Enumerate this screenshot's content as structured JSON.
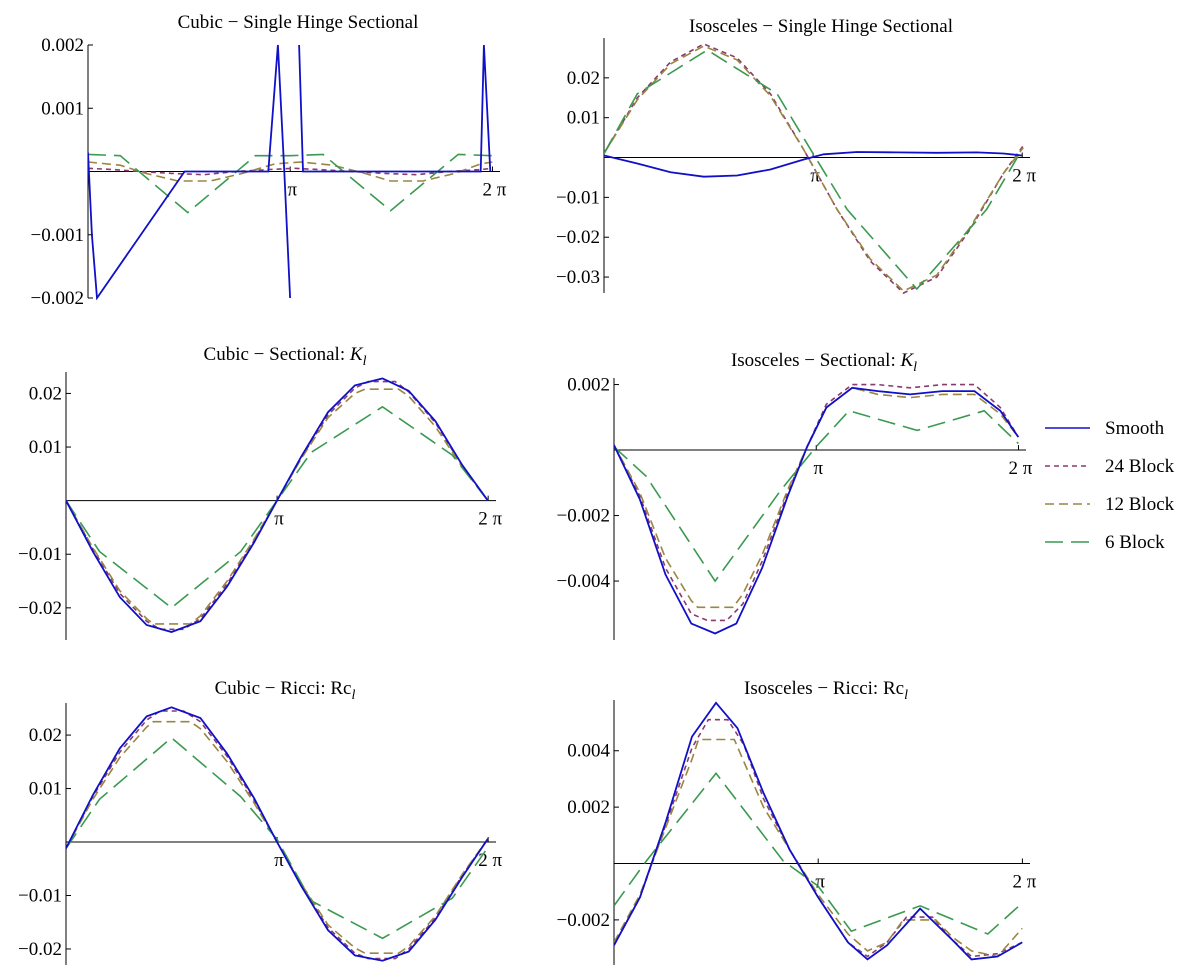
{
  "legend": {
    "placement": "right-middle",
    "entries": [
      {
        "name": "Smooth",
        "color": "#1010c8",
        "dash": "solid"
      },
      {
        "name": "24 Block",
        "color": "#8a3a6e",
        "dash": "short-dash"
      },
      {
        "name": "12 Block",
        "color": "#9a8640",
        "dash": "medium-dash"
      },
      {
        "name": "6 Block",
        "color": "#3a9a50",
        "dash": "long-dash"
      }
    ]
  },
  "x_ticks": [
    {
      "value": 3.14159,
      "label": "π"
    },
    {
      "value": 6.28319,
      "label": "2 π"
    }
  ],
  "chart_data": [
    {
      "type": "line",
      "title": "Cubic − Single Hinge Sectional",
      "xlim": [
        0,
        6.4
      ],
      "ylim": [
        -0.002,
        0.002
      ],
      "yticks": [
        {
          "value": 0.002,
          "label": "0.002"
        },
        {
          "value": 0.001,
          "label": "0.001"
        },
        {
          "value": -0.001,
          "label": "−0.001"
        },
        {
          "value": -0.002,
          "label": "−0.002"
        }
      ],
      "series": [
        {
          "name": "Smooth",
          "x": [
            0,
            0.06,
            0.14,
            1.5,
            2.8,
            2.95,
            3.05,
            3.14,
            3.2,
            3.28,
            3.34,
            4.7,
            6.1,
            6.15,
            6.2,
            6.25
          ],
          "y": [
            0.0003,
            -0.001,
            -0.002,
            0,
            0,
            0.002,
            0,
            -0.002,
            null,
            0.002,
            0,
            0,
            0,
            0.002,
            0.001,
            0
          ]
        },
        {
          "name": "24 Block",
          "x": [
            0,
            0.4,
            0.8,
            1.3,
            1.8,
            2.3,
            2.8,
            3.2,
            3.6,
            4.1,
            4.6,
            5.1,
            5.6,
            6.1,
            6.28
          ],
          "y": [
            5e-05,
            3e-05,
            0,
            -3e-05,
            -5e-05,
            0,
            3e-05,
            5e-05,
            3e-05,
            0,
            -3e-05,
            -5e-05,
            0,
            3e-05,
            5e-05
          ]
        },
        {
          "name": "12 Block",
          "x": [
            0,
            0.5,
            0.9,
            1.4,
            1.9,
            2.4,
            2.9,
            3.3,
            3.8,
            4.3,
            4.7,
            5.2,
            5.7,
            6.1,
            6.28
          ],
          "y": [
            0.00015,
            0.0001,
            -3e-05,
            -0.00015,
            -0.00015,
            -3e-05,
            0.00012,
            0.00015,
            0.0001,
            -3e-05,
            -0.00015,
            -0.00015,
            -3e-05,
            0.00012,
            0.00015
          ]
        },
        {
          "name": "6 Block",
          "x": [
            0,
            0.5,
            1.55,
            2.6,
            3.14,
            3.65,
            4.7,
            5.75,
            6.28
          ],
          "y": [
            0.00027,
            0.00025,
            -0.00065,
            0.00025,
            0.00025,
            0.00027,
            -0.00062,
            0.00027,
            0.00025
          ]
        }
      ]
    },
    {
      "type": "line",
      "title": "Isosceles − Single Hinge Sectional",
      "xlim": [
        0,
        6.4
      ],
      "ylim": [
        -0.034,
        0.03
      ],
      "yticks": [
        {
          "value": 0.02,
          "label": "0.02"
        },
        {
          "value": 0.01,
          "label": "0.01"
        },
        {
          "value": -0.01,
          "label": "−0.01"
        },
        {
          "value": -0.02,
          "label": "−0.02"
        },
        {
          "value": -0.03,
          "label": "−0.03"
        }
      ],
      "series": [
        {
          "name": "Smooth",
          "x": [
            0,
            0.5,
            1.0,
            1.5,
            2.0,
            2.5,
            3.0,
            3.3,
            3.8,
            4.4,
            5.0,
            5.6,
            6.0,
            6.28
          ],
          "y": [
            0.0005,
            -0.0015,
            -0.0037,
            -0.0048,
            -0.0045,
            -0.003,
            -0.0005,
            0.0008,
            0.0014,
            0.0013,
            0.0012,
            0.0013,
            0.001,
            0.0005
          ]
        },
        {
          "name": "24 Block",
          "x": [
            0,
            0.5,
            1.0,
            1.5,
            2.0,
            2.5,
            3.0,
            3.5,
            4.0,
            4.5,
            5.0,
            5.5,
            6.0,
            6.3
          ],
          "y": [
            0.001,
            0.015,
            0.024,
            0.0285,
            0.025,
            0.016,
            0.002,
            -0.013,
            -0.026,
            -0.034,
            -0.03,
            -0.018,
            -0.004,
            0.003
          ]
        },
        {
          "name": "12 Block",
          "x": [
            0,
            0.5,
            1.0,
            1.5,
            2.0,
            2.5,
            3.0,
            3.5,
            4.0,
            4.5,
            5.0,
            5.5,
            6.0,
            6.3
          ],
          "y": [
            0.001,
            0.0145,
            0.0235,
            0.028,
            0.0245,
            0.0155,
            0.002,
            -0.013,
            -0.0255,
            -0.0335,
            -0.0295,
            -0.0175,
            -0.004,
            0.0025
          ]
        },
        {
          "name": "6 Block",
          "x": [
            0,
            0.5,
            1.55,
            2.6,
            3.14,
            3.65,
            4.7,
            5.75,
            6.28
          ],
          "y": [
            0.001,
            0.016,
            0.027,
            0.016,
            0.001,
            -0.013,
            -0.033,
            -0.013,
            0.002
          ]
        }
      ]
    },
    {
      "type": "line",
      "title": "Cubic − Sectional: ",
      "title_symbol": "K",
      "title_subscript": "l",
      "xlim": [
        0,
        6.4
      ],
      "ylim": [
        -0.026,
        0.024
      ],
      "yticks": [
        {
          "value": 0.02,
          "label": "0.02"
        },
        {
          "value": 0.01,
          "label": "0.01"
        },
        {
          "value": -0.01,
          "label": "−0.01"
        },
        {
          "value": -0.02,
          "label": "−0.02"
        }
      ],
      "series": [
        {
          "name": "Smooth",
          "x": [
            0,
            0.4,
            0.8,
            1.2,
            1.57,
            2.0,
            2.4,
            2.8,
            3.14,
            3.5,
            3.9,
            4.3,
            4.71,
            5.1,
            5.5,
            5.9,
            6.28
          ],
          "y": [
            0,
            -0.0095,
            -0.018,
            -0.0232,
            -0.0245,
            -0.0225,
            -0.016,
            -0.0078,
            0,
            0.0082,
            0.0165,
            0.0215,
            0.0228,
            0.0205,
            0.0148,
            0.0066,
            0
          ]
        },
        {
          "name": "24 Block",
          "x": [
            0,
            0.4,
            0.8,
            1.2,
            1.4,
            1.75,
            2.0,
            2.4,
            2.8,
            3.14,
            3.5,
            3.9,
            4.3,
            4.5,
            4.9,
            5.1,
            5.5,
            5.9,
            6.28
          ],
          "y": [
            0,
            -0.009,
            -0.0173,
            -0.0225,
            -0.024,
            -0.024,
            -0.022,
            -0.0155,
            -0.0075,
            0,
            0.008,
            0.016,
            0.021,
            0.0222,
            0.0222,
            0.0203,
            0.0145,
            0.0064,
            0
          ]
        },
        {
          "name": "12 Block",
          "x": [
            0,
            0.4,
            0.8,
            1.2,
            1.3,
            1.85,
            2.0,
            2.4,
            2.8,
            3.14,
            3.5,
            3.9,
            4.3,
            4.45,
            4.95,
            5.1,
            5.5,
            5.9,
            6.28
          ],
          "y": [
            0,
            -0.0088,
            -0.0168,
            -0.022,
            -0.023,
            -0.023,
            -0.0215,
            -0.015,
            -0.0072,
            0,
            0.0078,
            0.0155,
            0.02,
            0.0208,
            0.0208,
            0.0195,
            0.0138,
            0.0062,
            0
          ]
        },
        {
          "name": "6 Block",
          "x": [
            0,
            0.5,
            1.57,
            2.6,
            3.14,
            3.65,
            4.71,
            5.75,
            6.28
          ],
          "y": [
            0,
            -0.0095,
            -0.02,
            -0.0095,
            0,
            0.009,
            0.0175,
            0.0085,
            0
          ]
        }
      ]
    },
    {
      "type": "line",
      "title": "Isosceles − Sectional: ",
      "title_symbol": "K",
      "title_subscript": "l",
      "xlim": [
        0,
        6.4
      ],
      "ylim": [
        -0.0058,
        0.0022
      ],
      "yticks": [
        {
          "value": 0.002,
          "label": "0.002"
        },
        {
          "value": -0.002,
          "label": "−0.002"
        },
        {
          "value": -0.004,
          "label": "−0.004"
        }
      ],
      "series": [
        {
          "name": "Smooth",
          "x": [
            0,
            0.4,
            0.8,
            1.2,
            1.57,
            1.9,
            2.3,
            2.7,
            3.0,
            3.3,
            3.7,
            4.1,
            4.6,
            5.1,
            5.6,
            6.0,
            6.28
          ],
          "y": [
            0.00015,
            -0.0015,
            -0.0038,
            -0.0053,
            -0.0056,
            -0.0053,
            -0.0036,
            -0.0014,
            0.0001,
            0.0013,
            0.0019,
            0.0018,
            0.0017,
            0.0018,
            0.0018,
            0.0012,
            0.0004
          ]
        },
        {
          "name": "24 Block",
          "x": [
            0,
            0.4,
            0.8,
            1.2,
            1.45,
            1.75,
            2.0,
            2.3,
            2.7,
            3.0,
            3.3,
            3.7,
            4.1,
            4.6,
            5.1,
            5.6,
            6.0,
            6.28
          ],
          "y": [
            0.00015,
            -0.0014,
            -0.0036,
            -0.005,
            -0.0052,
            -0.0052,
            -0.0047,
            -0.0034,
            -0.0013,
            0.0001,
            0.0014,
            0.002,
            0.002,
            0.0019,
            0.002,
            0.002,
            0.0013,
            0.0004
          ]
        },
        {
          "name": "12 Block",
          "x": [
            0,
            0.4,
            0.8,
            1.2,
            1.3,
            1.85,
            2.0,
            2.3,
            2.7,
            3.0,
            3.3,
            3.7,
            4.1,
            4.6,
            5.1,
            5.6,
            6.0,
            6.28
          ],
          "y": [
            0.00015,
            -0.0013,
            -0.0033,
            -0.0046,
            -0.0048,
            -0.0048,
            -0.0044,
            -0.0032,
            -0.0012,
            0.0001,
            0.0013,
            0.0019,
            0.0017,
            0.0016,
            0.0017,
            0.0017,
            0.0011,
            0.0004
          ]
        },
        {
          "name": "6 Block",
          "x": [
            0,
            0.5,
            1.57,
            2.6,
            3.14,
            3.65,
            4.71,
            5.75,
            6.28
          ],
          "y": [
            0.0001,
            -0.0008,
            -0.004,
            -0.0012,
            0.0001,
            0.0012,
            0.0006,
            0.0012,
            0.0002
          ]
        }
      ]
    },
    {
      "type": "line",
      "title": "Cubic − Ricci: Rc",
      "title_subscript": "l",
      "xlim": [
        0,
        6.4
      ],
      "ylim": [
        -0.023,
        0.026
      ],
      "yticks": [
        {
          "value": 0.02,
          "label": "0.02"
        },
        {
          "value": 0.01,
          "label": "0.01"
        },
        {
          "value": -0.01,
          "label": "−0.01"
        },
        {
          "value": -0.02,
          "label": "−0.02"
        }
      ],
      "series": [
        {
          "name": "Smooth",
          "x": [
            0,
            0.4,
            0.8,
            1.2,
            1.57,
            2.0,
            2.4,
            2.8,
            3.14,
            3.5,
            3.9,
            4.3,
            4.71,
            5.1,
            5.5,
            5.9,
            6.28
          ],
          "y": [
            -0.0012,
            0.0088,
            0.0175,
            0.0235,
            0.0252,
            0.0232,
            0.0165,
            0.0082,
            0,
            -0.0082,
            -0.0165,
            -0.0212,
            -0.0222,
            -0.0205,
            -0.0145,
            -0.0065,
            0.0006
          ]
        },
        {
          "name": "24 Block",
          "x": [
            0,
            0.4,
            0.8,
            1.2,
            1.4,
            1.75,
            2.0,
            2.4,
            2.8,
            3.14,
            3.5,
            3.9,
            4.3,
            4.5,
            4.9,
            5.1,
            5.5,
            5.9,
            6.28
          ],
          "y": [
            -0.0012,
            0.0085,
            0.0168,
            0.0228,
            0.0245,
            0.0245,
            0.0225,
            0.016,
            0.0078,
            0,
            -0.008,
            -0.016,
            -0.0208,
            -0.0218,
            -0.0218,
            -0.02,
            -0.0142,
            -0.0062,
            0.0006
          ]
        },
        {
          "name": "12 Block",
          "x": [
            0,
            0.4,
            0.8,
            1.2,
            1.3,
            1.85,
            2.0,
            2.4,
            2.8,
            3.14,
            3.5,
            3.9,
            4.3,
            4.45,
            4.95,
            5.1,
            5.5,
            5.9,
            6.28
          ],
          "y": [
            -0.0012,
            0.008,
            0.0158,
            0.0215,
            0.0225,
            0.0225,
            0.0212,
            0.015,
            0.0073,
            0,
            -0.0078,
            -0.0155,
            -0.0198,
            -0.0208,
            -0.0208,
            -0.0195,
            -0.0138,
            -0.006,
            0.0006
          ]
        },
        {
          "name": "6 Block",
          "x": [
            0,
            0.5,
            1.57,
            2.6,
            3.14,
            3.65,
            4.71,
            5.75,
            6.28
          ],
          "y": [
            -0.0012,
            0.008,
            0.0195,
            0.0085,
            0.0005,
            -0.011,
            -0.018,
            -0.0105,
            -0.001
          ]
        }
      ]
    },
    {
      "type": "line",
      "title": "Isosceles − Ricci: Rc",
      "title_subscript": "l",
      "xlim": [
        0,
        6.4
      ],
      "ylim": [
        -0.0036,
        0.0058
      ],
      "yticks": [
        {
          "value": 0.004,
          "label": "0.004"
        },
        {
          "value": 0.002,
          "label": "0.002"
        },
        {
          "value": -0.002,
          "label": "−0.002"
        }
      ],
      "series": [
        {
          "name": "Smooth",
          "x": [
            0,
            0.4,
            0.8,
            1.2,
            1.57,
            1.9,
            2.3,
            2.7,
            3.14,
            3.6,
            3.9,
            4.2,
            4.71,
            5.2,
            5.5,
            5.9,
            6.28
          ],
          "y": [
            -0.0029,
            -0.0012,
            0.0015,
            0.0045,
            0.0057,
            0.0048,
            0.0025,
            0.0005,
            -0.0012,
            -0.0028,
            -0.0034,
            -0.0029,
            -0.0016,
            -0.0027,
            -0.0034,
            -0.0033,
            -0.0028
          ]
        },
        {
          "name": "24 Block",
          "x": [
            0,
            0.4,
            0.8,
            1.2,
            1.45,
            1.75,
            2.0,
            2.3,
            2.7,
            3.14,
            3.6,
            3.9,
            4.2,
            4.5,
            4.9,
            5.2,
            5.5,
            5.9,
            6.28
          ],
          "y": [
            -0.0029,
            -0.0012,
            0.0014,
            0.0041,
            0.0051,
            0.0051,
            0.0042,
            0.0023,
            0.0005,
            -0.0012,
            -0.0028,
            -0.0033,
            -0.0028,
            -0.0019,
            -0.0019,
            -0.0027,
            -0.0033,
            -0.0032,
            -0.0028
          ]
        },
        {
          "name": "12 Block",
          "x": [
            0,
            0.4,
            0.8,
            1.2,
            1.3,
            1.85,
            2.0,
            2.3,
            2.7,
            3.14,
            3.6,
            3.9,
            4.2,
            4.45,
            4.95,
            5.2,
            5.5,
            5.9,
            6.28
          ],
          "y": [
            -0.0028,
            -0.0011,
            0.0013,
            0.0037,
            0.0044,
            0.0044,
            0.0036,
            0.002,
            0.0005,
            -0.0011,
            -0.0025,
            -0.0031,
            -0.0028,
            -0.002,
            -0.002,
            -0.0026,
            -0.0031,
            -0.0033,
            -0.0023
          ]
        },
        {
          "name": "6 Block",
          "x": [
            0,
            0.5,
            1.57,
            2.6,
            3.14,
            3.65,
            4.71,
            5.75,
            6.28
          ],
          "y": [
            -0.0015,
            0.0001,
            0.0032,
            0.0001,
            -0.0008,
            -0.0024,
            -0.0015,
            -0.0025,
            -0.0014
          ]
        }
      ]
    }
  ]
}
